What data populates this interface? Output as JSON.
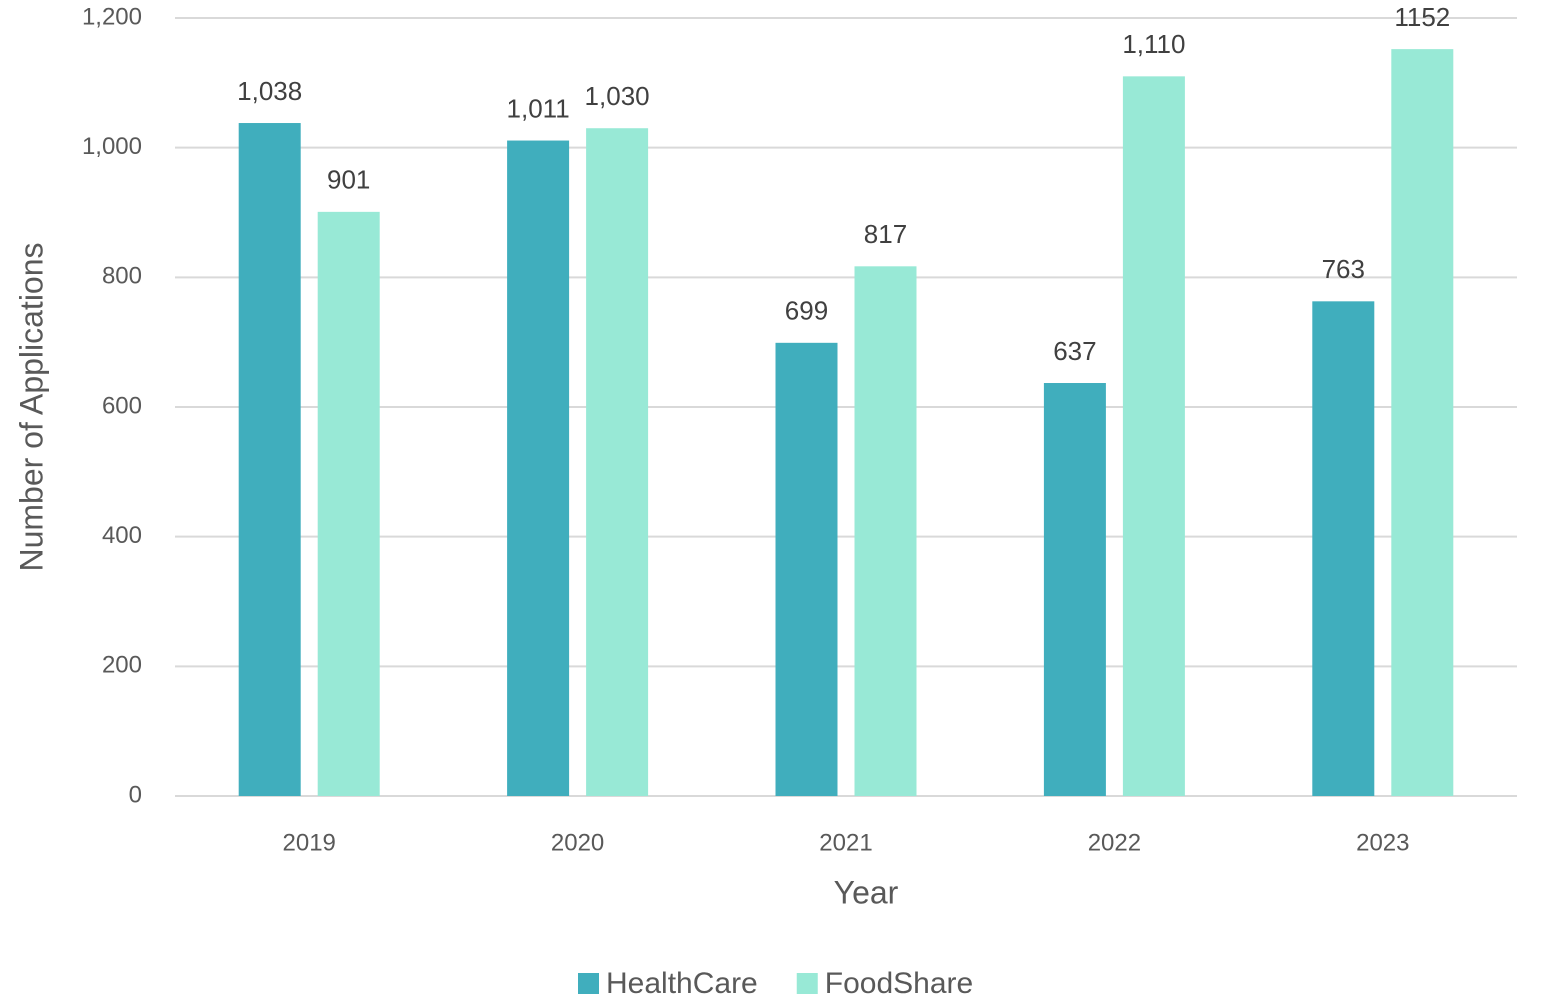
{
  "chart_data": {
    "type": "bar",
    "categories": [
      "2019",
      "2020",
      "2021",
      "2022",
      "2023"
    ],
    "series": [
      {
        "name": "HealthCare",
        "color": "#40aebd",
        "values": [
          1038,
          1011,
          699,
          637,
          763
        ],
        "value_labels": [
          "1,038",
          "1,011",
          "699",
          "637",
          "763"
        ]
      },
      {
        "name": "FoodShare",
        "color": "#98e9d6",
        "values": [
          901,
          1030,
          817,
          1110,
          1152
        ],
        "value_labels": [
          "901",
          "1,030",
          "817",
          "1,110",
          "1152"
        ]
      }
    ],
    "xlabel": "Year",
    "ylabel": "Number of Applications",
    "ylim": [
      0,
      1200
    ],
    "yticks": [
      0,
      200,
      400,
      600,
      800,
      {
        "value": 1000,
        "label": "1,000"
      },
      {
        "value": 1200,
        "label": "1,200"
      }
    ],
    "grid": true,
    "legend": "bottom"
  }
}
